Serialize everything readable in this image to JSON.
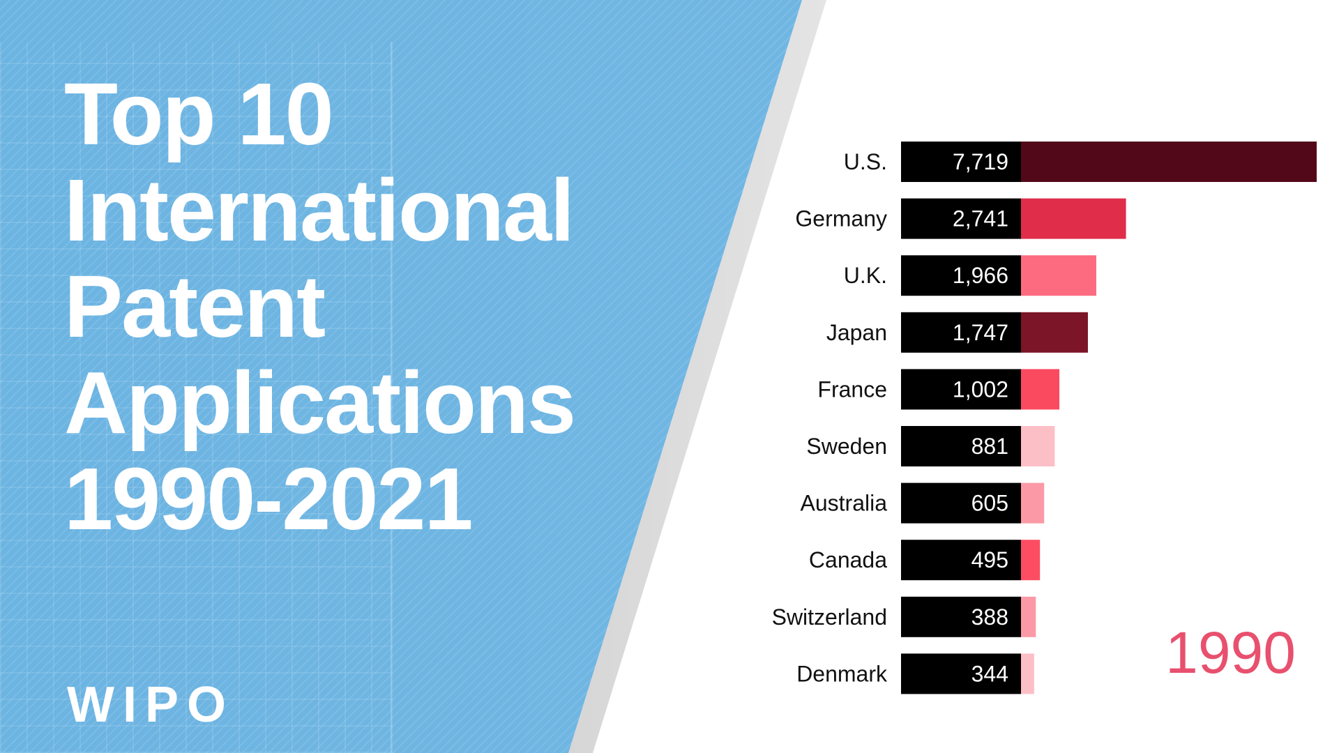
{
  "title_lines": [
    "Top 10",
    "International",
    "Patent",
    "Applications",
    "1990-2021"
  ],
  "logo_text": "WIPO",
  "year_label": "1990",
  "chart_data": {
    "type": "bar",
    "orientation": "horizontal",
    "title": "Top 10 International Patent Applications 1990-2021",
    "categories": [
      "U.S.",
      "Germany",
      "U.K.",
      "Japan",
      "France",
      "Sweden",
      "Australia",
      "Canada",
      "Switzerland",
      "Denmark"
    ],
    "values": [
      7719,
      2741,
      1966,
      1747,
      1002,
      881,
      605,
      495,
      388,
      344
    ],
    "value_labels": [
      "7,719",
      "2,741",
      "1,966",
      "1,747",
      "1,002",
      "881",
      "605",
      "495",
      "388",
      "344"
    ],
    "colors": [
      "#520819",
      "#e02d4a",
      "#fd6b80",
      "#7b1527",
      "#fa4a5f",
      "#fdbfc6",
      "#fb9aa6",
      "#fc4d62",
      "#fb9aa6",
      "#fdbfc6"
    ],
    "value_box_color": "#000000",
    "xlabel": "",
    "ylabel": "",
    "grid": false,
    "legend": "none"
  }
}
